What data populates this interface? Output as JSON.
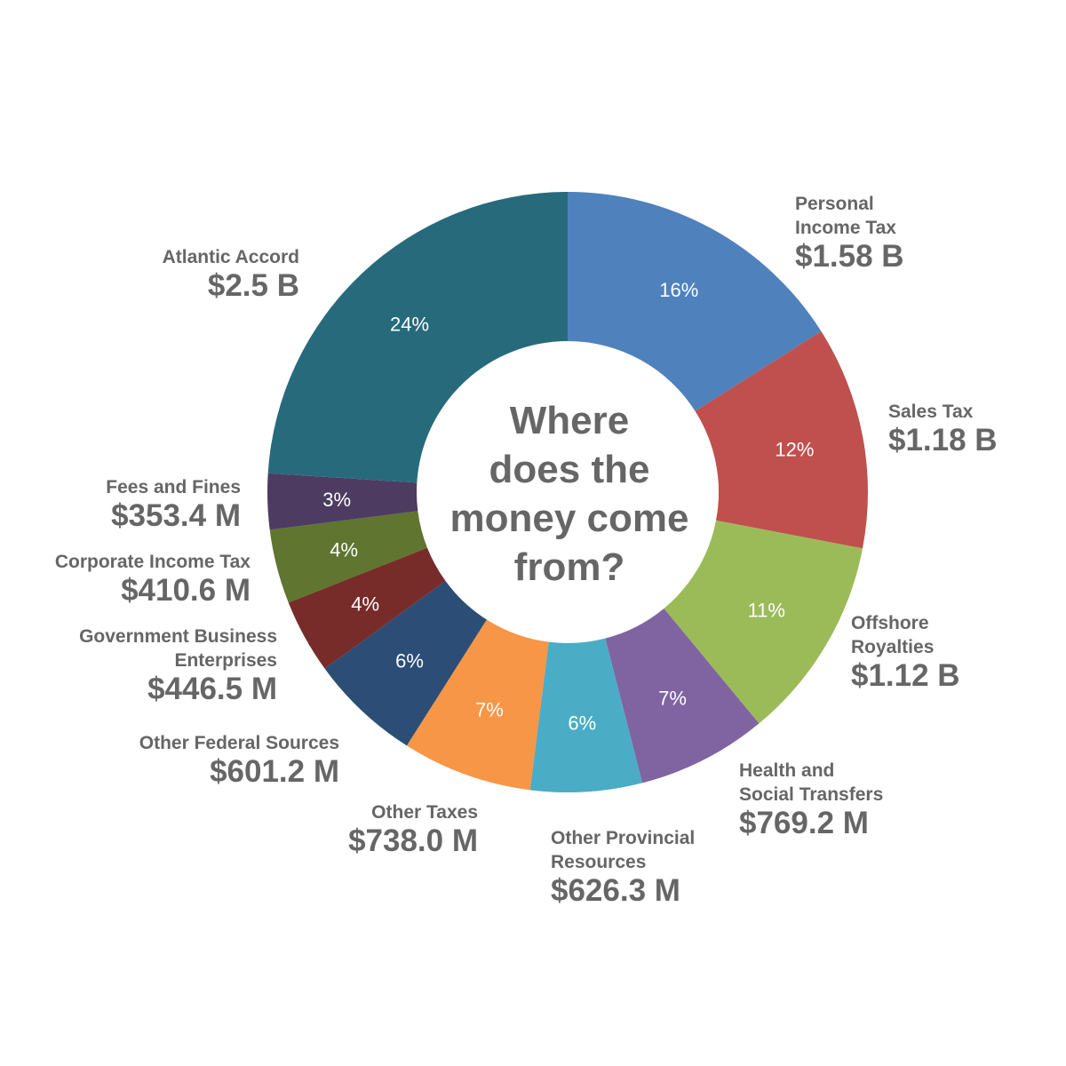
{
  "chart_data": {
    "type": "pie",
    "title": "Where does the money come from?",
    "title_lines": [
      "Where",
      "does the",
      "money come",
      "from?"
    ],
    "donut": true,
    "slices": [
      {
        "name": "Personal Income Tax",
        "name_lines": [
          "Personal",
          "Income Tax"
        ],
        "amount": "$1.58 B",
        "percent": "16%",
        "value": 16,
        "color": "#4f81bd"
      },
      {
        "name": "Sales Tax",
        "name_lines": [
          "Sales Tax"
        ],
        "amount": "$1.18 B",
        "percent": "12%",
        "value": 12,
        "color": "#c0504d"
      },
      {
        "name": "Offshore Royalties",
        "name_lines": [
          "Offshore",
          "Royalties"
        ],
        "amount": "$1.12 B",
        "percent": "11%",
        "value": 11,
        "color": "#9bbb59"
      },
      {
        "name": "Health and Social Transfers",
        "name_lines": [
          "Health and",
          "Social Transfers"
        ],
        "amount": "$769.2 M",
        "percent": "7%",
        "value": 7,
        "color": "#8064a2"
      },
      {
        "name": "Other Provincial Resources",
        "name_lines": [
          "Other Provincial",
          "Resources"
        ],
        "amount": "$626.3 M",
        "percent": "6%",
        "value": 6,
        "color": "#4bacc6"
      },
      {
        "name": "Other Taxes",
        "name_lines": [
          "Other Taxes"
        ],
        "amount": "$738.0 M",
        "percent": "7%",
        "value": 7,
        "color": "#f79646"
      },
      {
        "name": "Other Federal Sources",
        "name_lines": [
          "Other Federal Sources"
        ],
        "amount": "$601.2 M",
        "percent": "6%",
        "value": 6,
        "color": "#2c4d75"
      },
      {
        "name": "Government Business Enterprises",
        "name_lines": [
          "Government Business",
          "Enterprises"
        ],
        "amount": "$446.5 M",
        "percent": "4%",
        "value": 4,
        "color": "#772c2a"
      },
      {
        "name": "Corporate Income Tax",
        "name_lines": [
          "Corporate Income Tax"
        ],
        "amount": "$410.6 M",
        "percent": "4%",
        "value": 4,
        "color": "#5f7530"
      },
      {
        "name": "Fees and Fines",
        "name_lines": [
          "Fees and Fines"
        ],
        "amount": "$353.4 M",
        "percent": "3%",
        "value": 3,
        "color": "#4d3b62"
      },
      {
        "name": "Atlantic Accord",
        "name_lines": [
          "Atlantic Accord"
        ],
        "amount": "$2.5 B",
        "percent": "24%",
        "value": 24,
        "color": "#276a7c"
      }
    ]
  }
}
